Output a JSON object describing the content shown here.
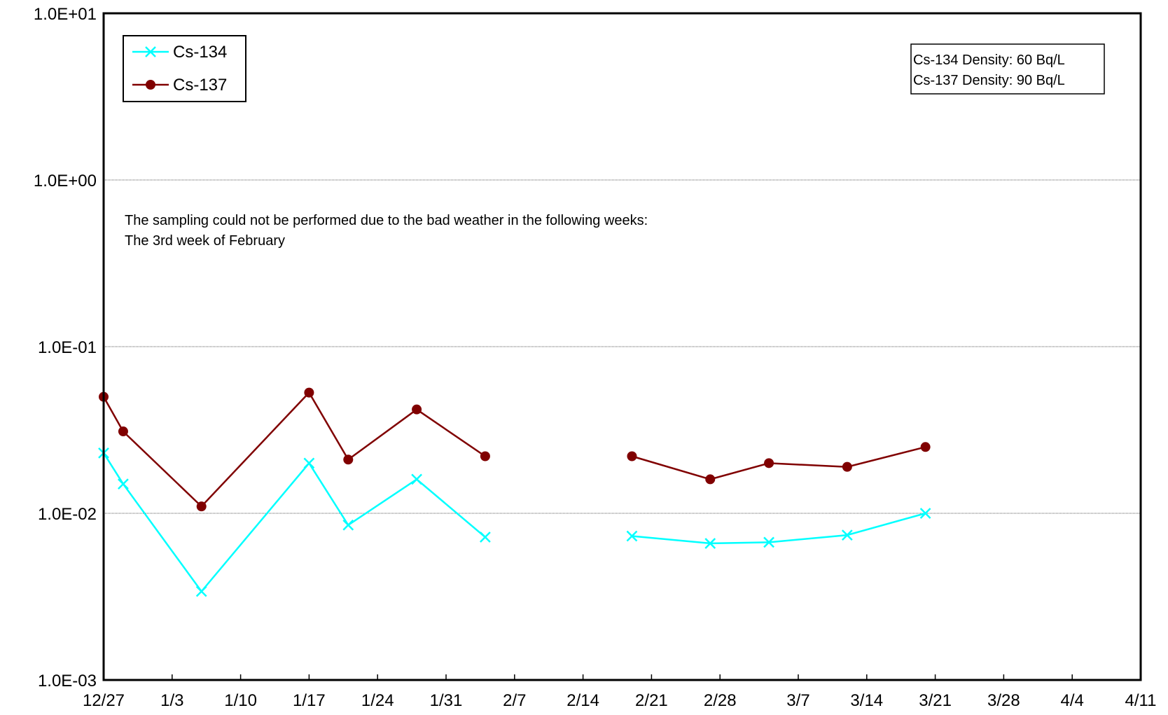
{
  "chart_data": {
    "type": "line",
    "yscale": "log",
    "ylim": [
      0.001,
      10
    ],
    "xlim": [
      "12/27",
      "4/11"
    ],
    "grid": true,
    "legend_position": "top-left",
    "x_tick_labels": [
      "12/27",
      "1/3",
      "1/10",
      "1/17",
      "1/24",
      "1/31",
      "2/7",
      "2/14",
      "2/21",
      "2/28",
      "3/7",
      "3/14",
      "3/21",
      "3/28",
      "4/4",
      "4/11"
    ],
    "y_tick_labels": [
      "1.0E+01",
      "1.0E+00",
      "1.0E-01",
      "1.0E-02",
      "1.0E-03"
    ],
    "y_tick_values": [
      10,
      1,
      0.1,
      0.01,
      0.001
    ],
    "series": [
      {
        "name": "Cs-134",
        "color": "#00ffff",
        "marker": "x",
        "segments": [
          [
            {
              "x": "12/27",
              "y": 0.023
            },
            {
              "x": "12/29",
              "y": 0.015
            },
            {
              "x": "1/6",
              "y": 0.0034
            },
            {
              "x": "1/17",
              "y": 0.02
            },
            {
              "x": "1/21",
              "y": 0.0085
            },
            {
              "x": "1/28",
              "y": 0.016
            },
            {
              "x": "2/4",
              "y": 0.0072
            }
          ],
          [
            {
              "x": "2/19",
              "y": 0.0073
            },
            {
              "x": "2/27",
              "y": 0.0066
            },
            {
              "x": "3/4",
              "y": 0.0067
            },
            {
              "x": "3/12",
              "y": 0.0074
            },
            {
              "x": "3/20",
              "y": 0.01
            }
          ]
        ]
      },
      {
        "name": "Cs-137",
        "color": "#800000",
        "marker": "circle",
        "segments": [
          [
            {
              "x": "12/27",
              "y": 0.05
            },
            {
              "x": "12/29",
              "y": 0.031
            },
            {
              "x": "1/6",
              "y": 0.011
            },
            {
              "x": "1/17",
              "y": 0.053
            },
            {
              "x": "1/21",
              "y": 0.021
            },
            {
              "x": "1/28",
              "y": 0.042
            },
            {
              "x": "2/4",
              "y": 0.022
            }
          ],
          [
            {
              "x": "2/19",
              "y": 0.022
            },
            {
              "x": "2/27",
              "y": 0.016
            },
            {
              "x": "3/4",
              "y": 0.02
            },
            {
              "x": "3/12",
              "y": 0.019
            },
            {
              "x": "3/20",
              "y": 0.025
            }
          ]
        ]
      }
    ],
    "annotations": {
      "note_line1": "The sampling could not be performed due to the bad weather in the following weeks:",
      "note_line2": "The 3rd week of February",
      "density_line1": "Cs-134 Density: 60 Bq/L",
      "density_line2": "Cs-137 Density: 90 Bq/L"
    }
  }
}
